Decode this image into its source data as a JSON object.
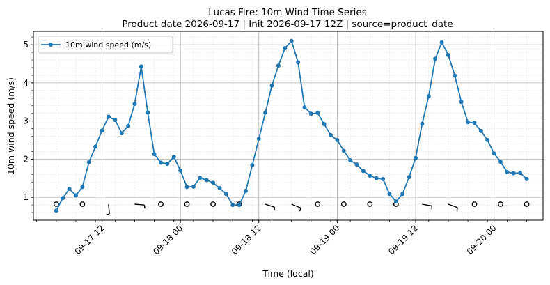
{
  "chart_data": {
    "type": "line",
    "title": "Lucas Fire: 10m Wind Time Series",
    "subtitle": "Product date 2026-09-17 | Init 2026-09-17 12Z | source=product_date",
    "xlabel": "Time (local)",
    "ylabel": "10m wind speed (m/s)",
    "x_start": "09-17 05",
    "x_step_hours": 1,
    "xlim_hours": [
      -12,
      52
    ],
    "ylim": [
      0.4,
      5.35
    ],
    "grid": true,
    "legend_position": "top-left",
    "x_ticks": [
      {
        "label": "09-17 12",
        "hour": 7
      },
      {
        "label": "09-18 00",
        "hour": 19
      },
      {
        "label": "09-18 12",
        "hour": 31
      },
      {
        "label": "09-19 00",
        "hour": 43
      },
      {
        "label": "09-19 12",
        "hour": 55
      },
      {
        "label": "09-20 00",
        "hour": 67
      }
    ],
    "y_ticks": [
      1,
      2,
      3,
      4,
      5
    ],
    "series": [
      {
        "name": "10m wind speed (m/s)",
        "color": "#1f77b4",
        "values": [
          0.65,
          0.98,
          1.22,
          1.05,
          1.27,
          1.92,
          2.33,
          2.75,
          3.11,
          3.03,
          2.68,
          2.87,
          3.45,
          4.43,
          3.22,
          2.13,
          1.91,
          1.88,
          2.06,
          1.7,
          1.27,
          1.28,
          1.51,
          1.45,
          1.38,
          1.24,
          1.09,
          0.8,
          0.8,
          1.17,
          1.84,
          2.53,
          3.22,
          3.93,
          4.45,
          4.91,
          5.1,
          4.54,
          3.36,
          3.19,
          3.21,
          2.92,
          2.63,
          2.5,
          2.22,
          1.97,
          1.86,
          1.69,
          1.57,
          1.5,
          1.48,
          1.09,
          0.89,
          1.09,
          1.53,
          2.03,
          2.93,
          3.65,
          4.63,
          5.06,
          4.73,
          4.19,
          3.5,
          2.97,
          2.95,
          2.74,
          2.5,
          2.15,
          1.93,
          1.66,
          1.63,
          1.64,
          1.48
        ]
      }
    ],
    "barbs": {
      "y": 0.82,
      "hours": [
        0,
        4,
        8,
        12,
        16,
        20,
        24,
        28,
        32,
        36,
        40,
        44,
        48,
        52,
        56,
        60,
        64,
        68,
        72
      ],
      "kinds": [
        "calm",
        "calm",
        "barb",
        "barb",
        "calm",
        "calm",
        "calm",
        "calm",
        "barb",
        "barb",
        "calm",
        "calm",
        "calm",
        "calm",
        "barb",
        "barb",
        "calm",
        "calm",
        "calm"
      ],
      "angles": [
        0,
        0,
        175,
        95,
        0,
        0,
        0,
        0,
        108,
        112,
        0,
        0,
        0,
        0,
        100,
        110,
        0,
        0,
        0
      ]
    }
  }
}
